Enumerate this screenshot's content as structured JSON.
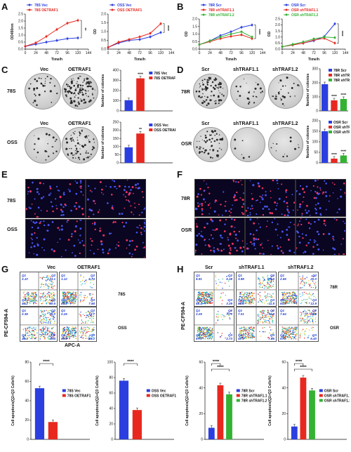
{
  "panels": {
    "A": "A",
    "B": "B",
    "C": "C",
    "D": "D",
    "E": "E",
    "F": "F",
    "G": "G",
    "H": "H"
  },
  "colors": {
    "blue": "#2b3fe0",
    "red": "#e8281f",
    "green": "#34b233"
  },
  "panelC": {
    "col1": "Vec",
    "col2": "OETRAF1",
    "row1": "78S",
    "row2": "OSS"
  },
  "panelD": {
    "col1": "Scr",
    "col2": "shTRAF1.1",
    "col3": "shTRAF1.2",
    "row1": "78R",
    "row2": "OSR"
  },
  "panelE": {
    "row1": "78S",
    "row2": "OSS"
  },
  "panelF": {
    "row1": "78R",
    "row2": "OSR"
  },
  "panelG": {
    "col1": "Vec",
    "col2": "OETRAF1",
    "row1": "78S",
    "row2": "OSS",
    "yaxis": "PE-CF594-A",
    "xaxis": "APC-A",
    "quadrants": [
      {
        "q1": "2.10",
        "q2": "23.1",
        "q3": "30.6",
        "q4": "44.2"
      },
      {
        "q1": "1.12",
        "q2": "5.74",
        "q3": "7.54",
        "q4": "81.0"
      },
      {
        "q1": "0.38",
        "q2": "35.0",
        "q3": "40.4",
        "q4": "24.3"
      },
      {
        "q1": "0.25",
        "q2": "14.7",
        "q3": "25.2",
        "q4": "59.9"
      }
    ]
  },
  "panelH": {
    "col1": "Scr",
    "col2": "shTRAF1.1",
    "col3": "shTRAF1.2",
    "row1": "78R",
    "row2": "OSR",
    "yaxis": "PE-CF594-A",
    "quadrants": [
      {
        "q1": "8.91",
        "q2": "5.32",
        "q3": "3.39",
        "q4": "82.4"
      },
      {
        "q1": "3.98",
        "q2": "28.6",
        "q3": "11.8",
        "q4": "55.6"
      },
      {
        "q1": "2.55",
        "q2": "20.0",
        "q3": "12.9",
        "q4": "64.5"
      },
      {
        "q1": "2.29",
        "q2": "7.70",
        "q3": "2.73",
        "q4": "87.3"
      },
      {
        "q1": "7.01",
        "q2": "37.8",
        "q3": "7.35",
        "q4": "47.9"
      },
      {
        "q1": "7.54",
        "q2": "28.8",
        "q3": "6.40",
        "q4": "57.3"
      }
    ]
  },
  "quadLabels": {
    "q1": "Q1",
    "q2": "Q2",
    "q3": "Q3",
    "q4": "Q4"
  },
  "chart_data": [
    {
      "id": "A1",
      "type": "line",
      "xlabel": "Time/h",
      "ylabel": "OD450nm",
      "x": [
        0,
        24,
        48,
        72,
        96,
        120
      ],
      "xticks": [
        "0",
        "24",
        "48",
        "72",
        "96",
        "120",
        "144"
      ],
      "ylim": [
        0,
        2.5
      ],
      "yticks": [
        "0.0",
        "0.5",
        "1.0",
        "1.5",
        "2.0",
        "2.5"
      ],
      "sig": "**",
      "series": [
        {
          "name": "78S Vec",
          "color": "#2b3fe0",
          "values": [
            0.2,
            0.35,
            0.5,
            0.62,
            0.75,
            0.8
          ]
        },
        {
          "name": "78S OETRAF1",
          "color": "#e8281f",
          "values": [
            0.2,
            0.45,
            0.9,
            1.4,
            1.85,
            2.05
          ]
        }
      ]
    },
    {
      "id": "A2",
      "type": "line",
      "xlabel": "Time/h",
      "ylabel": "OD",
      "x": [
        0,
        24,
        48,
        72,
        96,
        120
      ],
      "xticks": [
        "0",
        "24",
        "48",
        "72",
        "96",
        "120",
        "144"
      ],
      "ylim": [
        0,
        2.0
      ],
      "yticks": [
        "0.0",
        "0.5",
        "1.0",
        "1.5",
        "2.0"
      ],
      "sig": "****",
      "series": [
        {
          "name": "OSS Vec",
          "color": "#2b3fe0",
          "values": [
            0.1,
            0.35,
            0.5,
            0.55,
            0.7,
            0.95
          ]
        },
        {
          "name": "OSS OETRAF1",
          "color": "#e8281f",
          "values": [
            0.1,
            0.4,
            0.55,
            0.7,
            0.9,
            1.45
          ]
        }
      ]
    },
    {
      "id": "B1",
      "type": "line",
      "xlabel": "Time/h",
      "ylabel": "OD",
      "x": [
        0,
        24,
        48,
        72,
        96,
        120
      ],
      "xticks": [
        "0",
        "24",
        "48",
        "72",
        "96",
        "120",
        "144"
      ],
      "ylim": [
        0,
        2.0
      ],
      "yticks": [
        "0.0",
        "0.5",
        "1.0",
        "1.5",
        "2.0"
      ],
      "sig": "****",
      "series": [
        {
          "name": "78R Scr",
          "color": "#2b3fe0",
          "values": [
            0.3,
            0.55,
            0.9,
            1.15,
            1.45,
            1.6
          ]
        },
        {
          "name": "78R shTRAF1.1",
          "color": "#e8281f",
          "values": [
            0.3,
            0.5,
            0.7,
            0.85,
            0.95,
            0.7
          ]
        },
        {
          "name": "78R shTRAF1.2",
          "color": "#34b233",
          "values": [
            0.3,
            0.55,
            0.8,
            1.0,
            1.15,
            0.8
          ]
        }
      ]
    },
    {
      "id": "B2",
      "type": "line",
      "xlabel": "Time/h",
      "ylabel": "OD",
      "x": [
        0,
        24,
        48,
        72,
        96,
        120
      ],
      "xticks": [
        "0",
        "24",
        "48",
        "72",
        "96",
        "120",
        "144"
      ],
      "ylim": [
        0,
        2.5
      ],
      "yticks": [
        "0.0",
        "0.5",
        "1.0",
        "1.5",
        "2.0",
        "2.5"
      ],
      "sig": "****",
      "series": [
        {
          "name": "OSR Scr",
          "color": "#2b3fe0",
          "values": [
            0.2,
            0.35,
            0.5,
            0.7,
            1.05,
            2.1
          ]
        },
        {
          "name": "OSR shTRAF1.1",
          "color": "#e8281f",
          "values": [
            0.2,
            0.35,
            0.5,
            0.75,
            0.9,
            0.5
          ]
        },
        {
          "name": "OSR shTRAF1.2",
          "color": "#34b233",
          "values": [
            0.2,
            0.4,
            0.6,
            0.85,
            1.0,
            0.95
          ]
        }
      ]
    },
    {
      "id": "C1",
      "type": "bar",
      "ylabel": "Number of colonies",
      "ylim": [
        0,
        400
      ],
      "yticks": [
        "0",
        "100",
        "200",
        "300",
        "400"
      ],
      "sig": [
        "****"
      ],
      "series": [
        {
          "name": "78S Vec",
          "color": "#2b3fe0",
          "values": [
            105
          ]
        },
        {
          "name": "78S OETRAF1",
          "color": "#e8281f",
          "values": [
            320
          ]
        }
      ]
    },
    {
      "id": "C2",
      "type": "bar",
      "ylabel": "Number of colonies",
      "ylim": [
        0,
        250
      ],
      "yticks": [
        "0",
        "50",
        "100",
        "150",
        "200",
        "250"
      ],
      "sig": [
        "**"
      ],
      "series": [
        {
          "name": "OSS Vec",
          "color": "#2b3fe0",
          "values": [
            95
          ]
        },
        {
          "name": "OSS OETRAF1",
          "color": "#e8281f",
          "values": [
            180
          ]
        }
      ]
    },
    {
      "id": "D1",
      "type": "bar",
      "ylabel": "Number of colonies",
      "ylim": [
        0,
        300
      ],
      "yticks": [
        "0",
        "100",
        "200",
        "300"
      ],
      "sig": [
        "****",
        "****"
      ],
      "series": [
        {
          "name": "78R Scr",
          "color": "#2b3fe0",
          "values": [
            190
          ]
        },
        {
          "name": "78R shTRAF1.1",
          "color": "#e8281f",
          "values": [
            75
          ]
        },
        {
          "name": "78R shTRAF1.2",
          "color": "#34b233",
          "values": [
            85
          ]
        }
      ]
    },
    {
      "id": "D2",
      "type": "bar",
      "ylabel": "Number of colonies",
      "ylim": [
        0,
        200
      ],
      "yticks": [
        "0",
        "50",
        "100",
        "150",
        "200"
      ],
      "sig": [
        "****",
        "****"
      ],
      "series": [
        {
          "name": "OSR Scr",
          "color": "#2b3fe0",
          "values": [
            150
          ]
        },
        {
          "name": "OSR shTRAF1.1",
          "color": "#e8281f",
          "values": [
            20
          ]
        },
        {
          "name": "OSR shTRAF1.2",
          "color": "#34b233",
          "values": [
            35
          ]
        }
      ]
    },
    {
      "id": "G1",
      "type": "bar",
      "ylabel": "Cell apoptosis(Q2+Q3 Cells%)",
      "ylim": [
        0,
        80
      ],
      "yticks": [
        "0",
        "20",
        "40",
        "60",
        "80"
      ],
      "sig": [
        "****"
      ],
      "series": [
        {
          "name": "78S Vec",
          "color": "#2b3fe0",
          "values": [
            53
          ]
        },
        {
          "name": "78S OETRAF1",
          "color": "#e8281f",
          "values": [
            18
          ]
        }
      ]
    },
    {
      "id": "G2",
      "type": "bar",
      "ylabel": "Cell apoptosis(Q2+Q3 Cells%)",
      "ylim": [
        0,
        100
      ],
      "yticks": [
        "0",
        "20",
        "40",
        "60",
        "80",
        "100"
      ],
      "sig": [
        "****"
      ],
      "series": [
        {
          "name": "OSS Vec",
          "color": "#2b3fe0",
          "values": [
            76
          ]
        },
        {
          "name": "OSS OETRAF1",
          "color": "#e8281f",
          "values": [
            38
          ]
        }
      ]
    },
    {
      "id": "H1",
      "type": "bar",
      "ylabel": "Cell apoptosis(Q2+Q3 Cells%)",
      "ylim": [
        0,
        60
      ],
      "yticks": [
        "0",
        "20",
        "40",
        "60"
      ],
      "sig": [
        "****",
        "****"
      ],
      "series": [
        {
          "name": "78R Scr",
          "color": "#2b3fe0",
          "values": [
            9
          ]
        },
        {
          "name": "78R shTRAF1.1",
          "color": "#e8281f",
          "values": [
            42
          ]
        },
        {
          "name": "78R shTRAF1.2",
          "color": "#34b233",
          "values": [
            35
          ]
        }
      ]
    },
    {
      "id": "H2",
      "type": "bar",
      "ylabel": "Cell apoptosis(Q2+Q3 Cells%)",
      "ylim": [
        0,
        60
      ],
      "yticks": [
        "0",
        "20",
        "40",
        "60"
      ],
      "sig": [
        "****",
        "****"
      ],
      "series": [
        {
          "name": "OSR Scr",
          "color": "#2b3fe0",
          "values": [
            10
          ]
        },
        {
          "name": "OSR shTRAF1.1",
          "color": "#e8281f",
          "values": [
            48
          ]
        },
        {
          "name": "OSR shTRAF1.2",
          "color": "#34b233",
          "values": [
            38
          ]
        }
      ]
    }
  ]
}
